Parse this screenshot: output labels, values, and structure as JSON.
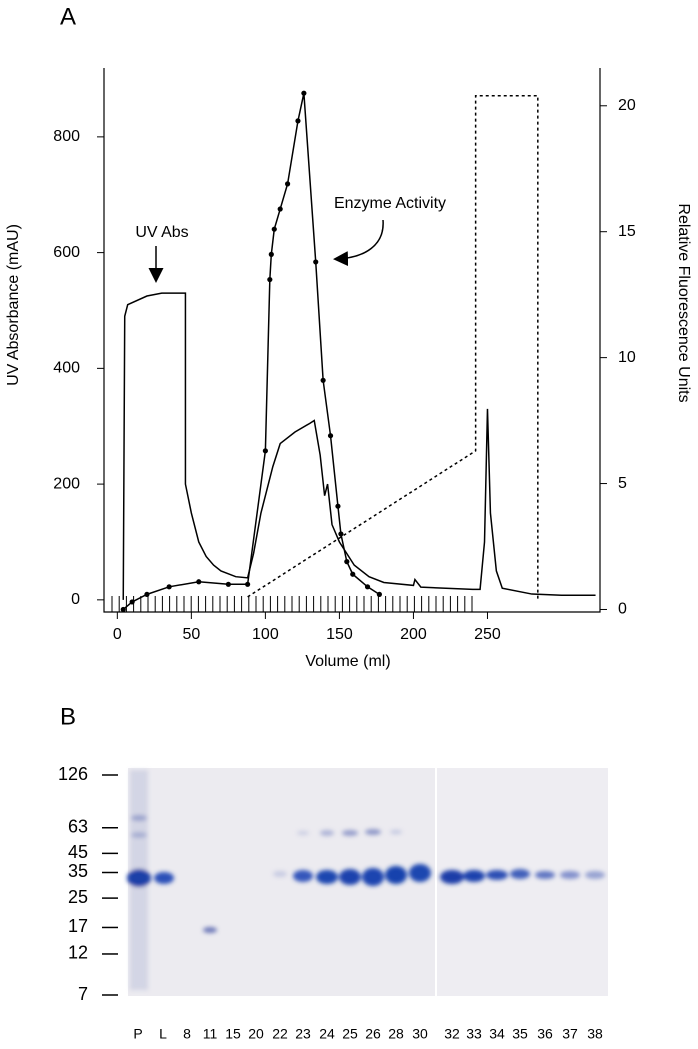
{
  "chart_data": [
    {
      "type": "line",
      "panel": "A",
      "xlabel": "Volume (ml)",
      "ylabel": "UV Absorbance (mAU)",
      "y2label": "Relative Fluorescence Units",
      "xlim": [
        -9,
        326
      ],
      "xticks": [
        0,
        50,
        100,
        150,
        200,
        250
      ],
      "ylim": [
        -21,
        919
      ],
      "yticks": [
        0,
        200,
        400,
        600,
        800
      ],
      "y2lim": [
        -0.1,
        21.5
      ],
      "y2ticks": [
        0,
        5,
        10,
        15,
        20
      ],
      "annotations": [
        "UV Abs",
        "Enzyme Activity"
      ],
      "series": [
        {
          "color": "#000000",
          "style": "solid",
          "markers": false,
          "x": [
            4,
            5,
            7,
            20,
            30,
            46,
            46,
            50,
            55,
            60,
            65,
            70,
            80,
            88,
            92,
            97,
            105,
            110,
            120,
            130,
            133,
            137,
            140,
            142,
            145,
            150,
            160,
            170,
            180,
            200,
            201,
            205,
            240,
            245,
            248,
            250,
            252,
            256,
            260,
            280,
            300,
            323
          ],
          "values": [
            0,
            490,
            510,
            525,
            530,
            530,
            200,
            150,
            100,
            75,
            60,
            50,
            40,
            38,
            80,
            150,
            230,
            270,
            290,
            305,
            310,
            250,
            180,
            200,
            130,
            100,
            60,
            40,
            30,
            25,
            35,
            22,
            18,
            18,
            100,
            330,
            150,
            50,
            20,
            10,
            8,
            8
          ]
        },
        {
          "color": "#000000",
          "style": "solid",
          "markers": true,
          "axis": "y2",
          "x": [
            4,
            10,
            20,
            35,
            55,
            75,
            88,
            100,
            103,
            104,
            106,
            110,
            115,
            122,
            126,
            134,
            139,
            144,
            149,
            151,
            155,
            159,
            169,
            177
          ],
          "values": [
            0,
            0.3,
            0.6,
            0.9,
            1.1,
            1.0,
            1.0,
            6.3,
            13.1,
            14.1,
            15.1,
            15.9,
            16.9,
            19.4,
            20.5,
            13.8,
            9.1,
            6.9,
            4.1,
            3.0,
            1.9,
            1.4,
            0.9,
            0.6
          ]
        },
        {
          "color": "#000000",
          "style": "dashed",
          "markers": false,
          "axis": "y2",
          "x": [
            88,
            242,
            242,
            284,
            284
          ],
          "values": [
            0.5,
            6.3,
            20.4,
            20.4,
            0.4
          ]
        }
      ]
    },
    {
      "type": "gel",
      "panel": "B",
      "mw_markers": [
        126,
        63,
        45,
        35,
        25,
        17,
        12,
        7
      ],
      "lanes": [
        "P",
        "L",
        "8",
        "11",
        "15",
        "20",
        "22",
        "23",
        "24",
        "25",
        "26",
        "28",
        "30",
        "32",
        "33",
        "34",
        "35",
        "36",
        "37",
        "38"
      ]
    }
  ]
}
